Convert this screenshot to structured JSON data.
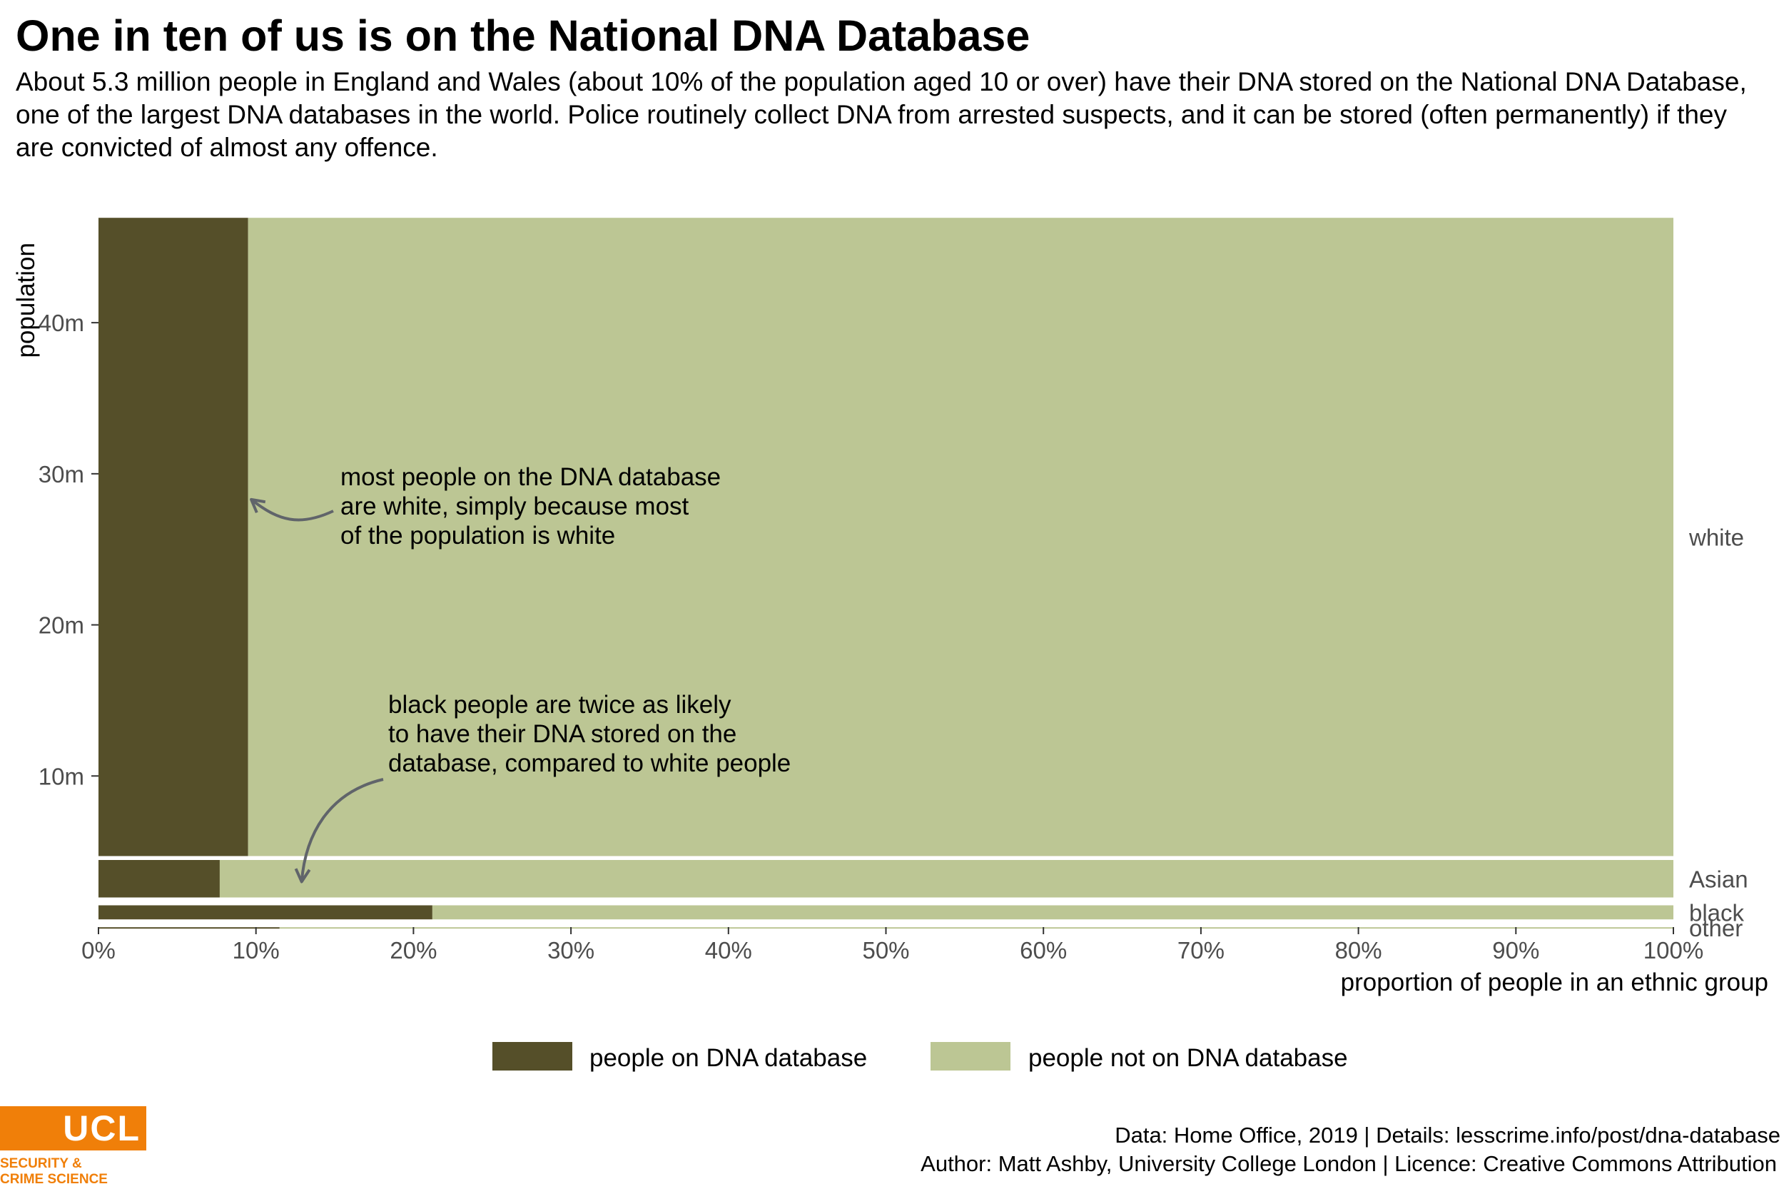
{
  "page": {
    "title": "One in ten of us is on the National DNA Database",
    "subtitle": "About 5.3 million people in England and Wales (about 10% of the population aged 10 or over) have their DNA stored on the National DNA Database, one of the largest DNA databases in the world. Police routinely collect DNA from arrested suspects, and it can be stored (often permanently) if they are convicted of almost any offence."
  },
  "chart_data": {
    "type": "bar",
    "variant": "mosaic",
    "categories": [
      "white",
      "Asian",
      "black",
      "other"
    ],
    "population_millions": [
      42.5,
      3.0,
      1.45,
      0.25
    ],
    "series": [
      {
        "name": "people on DNA database",
        "color": "#554f29",
        "values": [
          9.5,
          7.7,
          21.2,
          11.5
        ]
      },
      {
        "name": "people not on DNA database",
        "color": "#bcc694",
        "values": [
          90.5,
          92.3,
          78.8,
          88.5
        ]
      }
    ],
    "xlabel": "proportion of people in an ethnic group",
    "ylabel": "population",
    "xlim": [
      0,
      100
    ],
    "ylim": [
      0,
      49.5
    ],
    "x_ticks": [
      "0%",
      "10%",
      "20%",
      "30%",
      "40%",
      "50%",
      "60%",
      "70%",
      "80%",
      "90%",
      "100%"
    ],
    "y_ticks": [
      {
        "value": 10,
        "label": "10m"
      },
      {
        "value": 20,
        "label": "20m"
      },
      {
        "value": 30,
        "label": "30m"
      },
      {
        "value": 40,
        "label": "40m"
      }
    ],
    "legend_position": "bottom",
    "grid": false,
    "annotations": [
      {
        "lines": [
          "most people on the DNA database",
          "are white, simply because most",
          "of the population is white"
        ],
        "arrow_to": {
          "x": 9.7,
          "y": 28.3
        }
      },
      {
        "lines": [
          "black people are twice as likely",
          "to have their DNA stored on the",
          "database, compared to white people"
        ],
        "arrow_to": {
          "x": 12.9,
          "y": 3.0
        }
      }
    ]
  },
  "caption": {
    "line1": "Data: Home Office, 2019 | Details: lesscrime.info/post/dna-database",
    "line2": "Author: Matt Ashby, University College London | Licence: Creative Commons Attribution"
  },
  "logo": {
    "mark": "UCL",
    "line1": "SECURITY &",
    "line2": "CRIME SCIENCE",
    "color": "#f07f09"
  }
}
